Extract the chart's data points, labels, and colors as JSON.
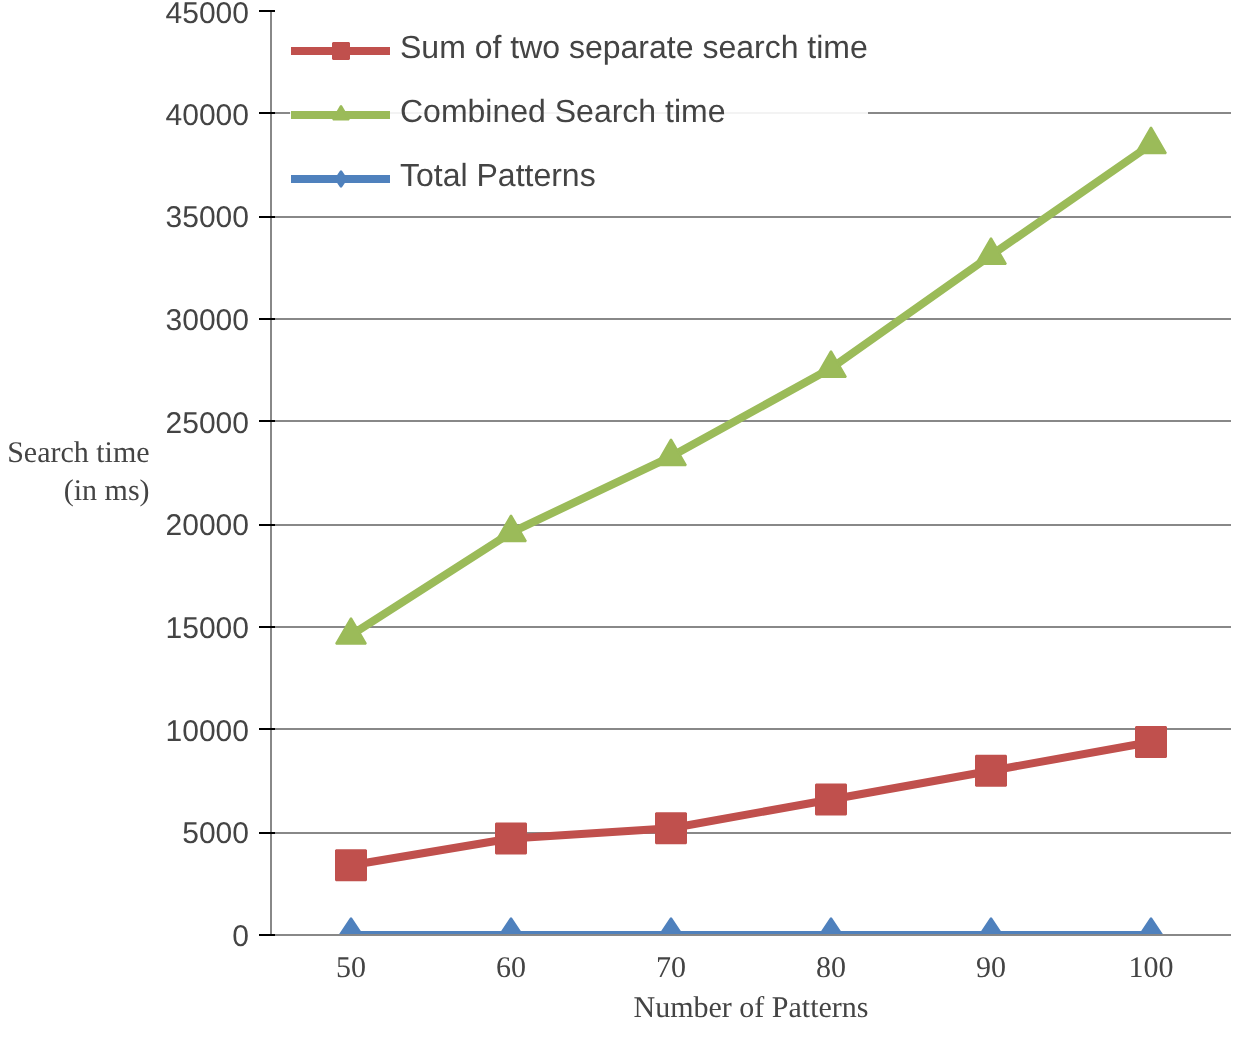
{
  "chart_data": {
    "type": "line",
    "xlabel": "Number of Patterns",
    "ylabel": "Search time\n(in ms)",
    "categories": [
      "50",
      "60",
      "70",
      "80",
      "90",
      "100"
    ],
    "ylim": [
      0,
      45000
    ],
    "yticks": [
      0,
      5000,
      10000,
      15000,
      20000,
      25000,
      30000,
      35000,
      40000,
      45000
    ],
    "grid": "y",
    "legend": "top left",
    "line_style": "solid",
    "series": [
      {
        "name": "Sum of two separate search time",
        "color": "#c0504d",
        "marker": "square",
        "values": [
          3400,
          4700,
          5200,
          6600,
          8000,
          9400
        ]
      },
      {
        "name": "Combined Search time",
        "color": "#9bbb59",
        "marker": "triangle",
        "values": [
          14600,
          19600,
          23300,
          27600,
          33100,
          38500
        ]
      },
      {
        "name": "Total Patterns",
        "color": "#4f81bd",
        "marker": "diamond",
        "values": [
          0,
          0,
          0,
          0,
          0,
          0
        ]
      }
    ]
  }
}
